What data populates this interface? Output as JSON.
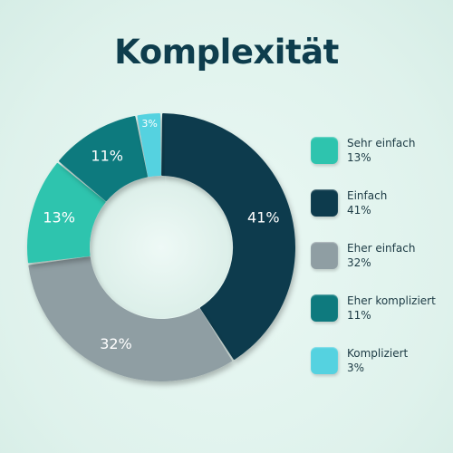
{
  "chart_data": {
    "type": "pie",
    "title": "Komplexität",
    "categories": [
      "Sehr einfach",
      "Einfach",
      "Eher einfach",
      "Eher kompliziert",
      "Kompliziert"
    ],
    "values": [
      13,
      41,
      32,
      11,
      3
    ],
    "value_labels": [
      "13%",
      "41%",
      "32%",
      "11%",
      "3%"
    ],
    "colors": [
      "#2ec4ae",
      "#0d3b4d",
      "#8f9ea3",
      "#0e7a7e",
      "#55d2e0"
    ],
    "donut": true,
    "legend_position": "right",
    "slice_order_clockwise_from_top": [
      "Einfach",
      "Eher einfach",
      "Sehr einfach",
      "Eher kompliziert",
      "Kompliziert"
    ]
  }
}
